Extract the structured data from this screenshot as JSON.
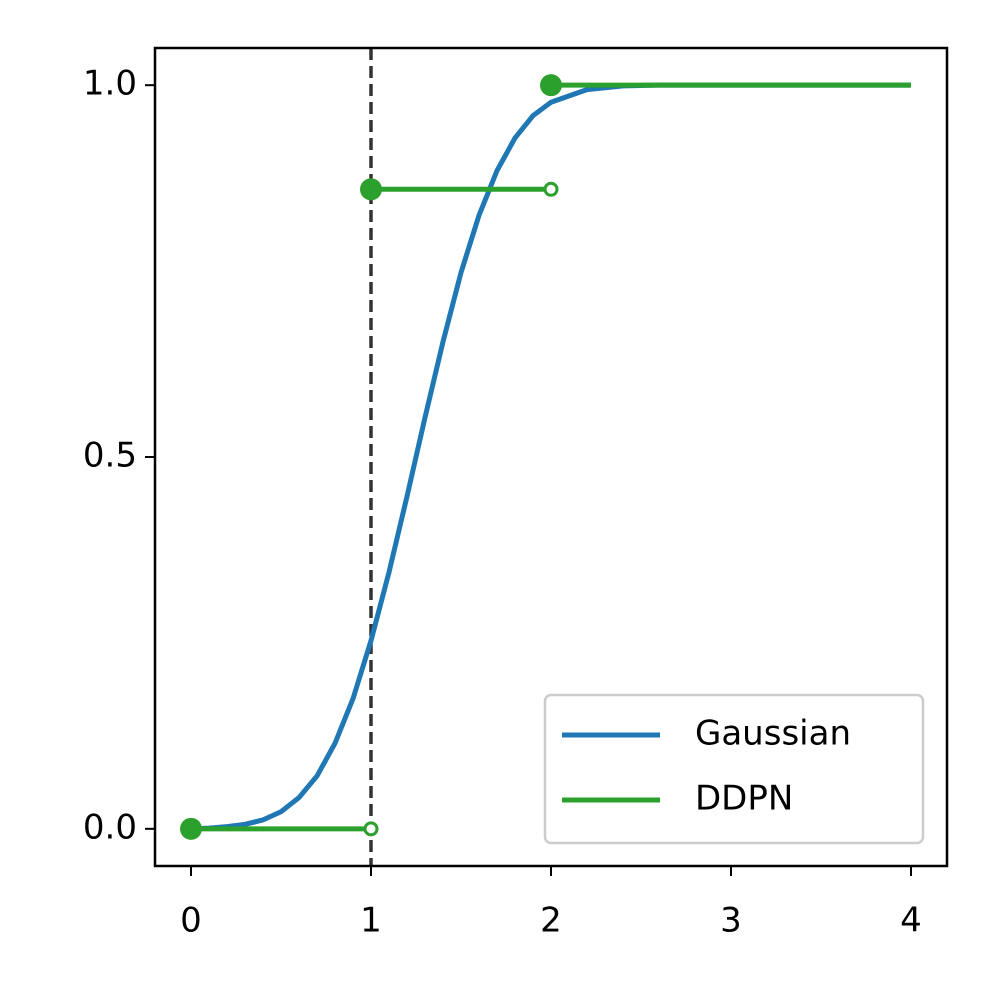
{
  "chart_data": {
    "type": "line",
    "xlim": [
      -0.2,
      4.2
    ],
    "ylim": [
      -0.05,
      1.05
    ],
    "xticks": [
      0,
      1,
      2,
      3,
      4
    ],
    "yticks": [
      {
        "value": 0,
        "label": "0.0"
      },
      {
        "value": 0.5,
        "label": "0.5"
      },
      {
        "value": 1,
        "label": "1.0"
      }
    ],
    "vline": 1,
    "vline_color": "#333333",
    "legend": "lower right",
    "series": [
      {
        "name": "Gaussian",
        "color": "#1f77b4",
        "style": "curve",
        "x": [
          0,
          0.1,
          0.2,
          0.3,
          0.4,
          0.5,
          0.6,
          0.7,
          0.8,
          0.9,
          1.0,
          1.1,
          1.2,
          1.3,
          1.4,
          1.5,
          1.6,
          1.7,
          1.8,
          1.9,
          2.0,
          2.2,
          2.4,
          2.6,
          3.0,
          4.0
        ],
        "values": [
          0.0,
          0.001,
          0.003,
          0.006,
          0.012,
          0.023,
          0.042,
          0.071,
          0.115,
          0.175,
          0.253,
          0.345,
          0.447,
          0.553,
          0.655,
          0.748,
          0.825,
          0.885,
          0.929,
          0.959,
          0.977,
          0.994,
          0.999,
          1.0,
          1.0,
          1.0
        ]
      },
      {
        "name": "DDPN",
        "color": "#2ca02c",
        "style": "steps",
        "x": [
          0,
          1,
          2
        ],
        "x_end": [
          1,
          2,
          4
        ],
        "values": [
          0,
          0.86,
          1
        ]
      }
    ]
  }
}
